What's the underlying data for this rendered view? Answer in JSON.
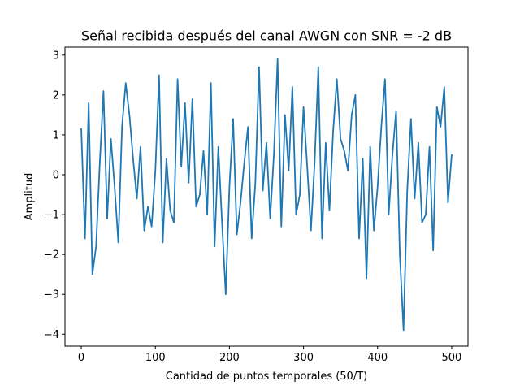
{
  "chart_data": {
    "type": "line",
    "title": "Señal recibida después del canal AWGN con SNR = -2 dB",
    "xlabel": "Cantidad de puntos temporales (50/T)",
    "ylabel": "Amplitud",
    "xlim": [
      -22,
      522
    ],
    "ylim": [
      -4.3,
      3.2
    ],
    "xticks": [
      0,
      100,
      200,
      300,
      400,
      500
    ],
    "xtick_labels": [
      "0",
      "100",
      "200",
      "300",
      "400",
      "500"
    ],
    "yticks": [
      -4,
      -3,
      -2,
      -1,
      0,
      1,
      2,
      3
    ],
    "ytick_labels": [
      "−4",
      "−3",
      "−2",
      "−1",
      "0",
      "1",
      "2",
      "3"
    ],
    "grid": false,
    "legend": "none",
    "series": [
      {
        "color": "#1f77b4",
        "x": [
          0,
          5,
          10,
          15,
          20,
          25,
          30,
          35,
          40,
          45,
          50,
          55,
          60,
          65,
          70,
          75,
          80,
          85,
          90,
          95,
          100,
          105,
          110,
          115,
          120,
          125,
          130,
          135,
          140,
          145,
          150,
          155,
          160,
          165,
          170,
          175,
          180,
          185,
          190,
          195,
          200,
          205,
          210,
          215,
          220,
          225,
          230,
          235,
          240,
          245,
          250,
          255,
          260,
          265,
          270,
          275,
          280,
          285,
          290,
          295,
          300,
          305,
          310,
          315,
          320,
          325,
          330,
          335,
          340,
          345,
          350,
          355,
          360,
          365,
          370,
          375,
          380,
          385,
          390,
          395,
          400,
          405,
          410,
          415,
          420,
          425,
          430,
          435,
          440,
          445,
          450,
          455,
          460,
          465,
          470,
          475,
          480,
          485,
          490,
          495,
          500
        ],
        "y": [
          1.15,
          -1.6,
          1.8,
          -2.5,
          -1.8,
          0.3,
          2.1,
          -1.1,
          0.9,
          -0.3,
          -1.7,
          1.2,
          2.3,
          1.5,
          0.4,
          -0.6,
          0.7,
          -1.4,
          -0.8,
          -1.3,
          0.1,
          2.5,
          -1.7,
          0.4,
          -0.9,
          -1.2,
          2.4,
          0.2,
          1.8,
          -0.2,
          1.9,
          -0.8,
          -0.5,
          0.6,
          -1.0,
          2.3,
          -1.8,
          0.7,
          -1.2,
          -3.0,
          -0.3,
          1.4,
          -1.5,
          -0.7,
          0.3,
          1.2,
          -1.6,
          -0.2,
          2.7,
          -0.4,
          0.8,
          -1.1,
          0.5,
          2.9,
          -1.3,
          1.5,
          0.1,
          2.2,
          -1.0,
          -0.5,
          1.7,
          0.2,
          -1.4,
          0.3,
          2.7,
          -1.6,
          0.8,
          -0.9,
          1.1,
          2.4,
          0.9,
          0.6,
          0.1,
          1.5,
          2.0,
          -1.6,
          0.4,
          -2.6,
          0.7,
          -1.4,
          -0.3,
          1.2,
          2.4,
          -1.0,
          0.5,
          1.6,
          -2.0,
          -3.9,
          -0.4,
          1.4,
          -0.6,
          0.8,
          -1.2,
          -1.0,
          0.7,
          -1.9,
          1.7,
          1.2,
          2.2,
          -0.7,
          0.5
        ]
      }
    ]
  }
}
